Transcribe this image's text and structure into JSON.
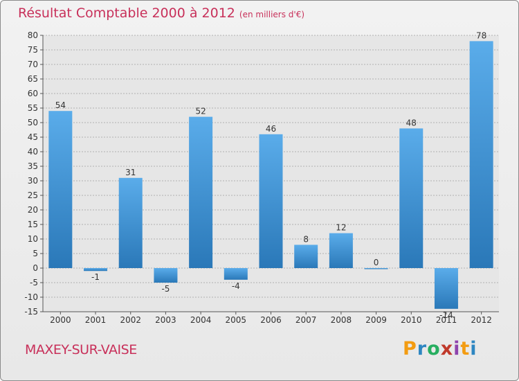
{
  "header": {
    "title": "Résultat Comptable 2000 à 2012",
    "subtitle": "(en milliers d'€)"
  },
  "footer": {
    "commune": "MAXEY-SUR-VAISE",
    "brand": "Proxiti",
    "brand_letters": [
      {
        "char": "P",
        "color": "#f39c12"
      },
      {
        "char": "r",
        "color": "#2e86c1"
      },
      {
        "char": "o",
        "color": "#27ae60"
      },
      {
        "char": "x",
        "color": "#c0392b"
      },
      {
        "char": "i",
        "color": "#8e44ad"
      },
      {
        "char": "t",
        "color": "#f39c12"
      },
      {
        "char": "i",
        "color": "#2e86c1"
      }
    ]
  },
  "chart_data": {
    "type": "bar",
    "title": "Résultat Comptable 2000 à 2012",
    "ylabel": "en milliers d'€",
    "xlabel": "",
    "categories": [
      "2000",
      "2001",
      "2002",
      "2003",
      "2004",
      "2005",
      "2006",
      "2007",
      "2008",
      "2009",
      "2010",
      "2011",
      "2012"
    ],
    "values": [
      54,
      -1,
      31,
      -5,
      52,
      -4,
      46,
      8,
      12,
      0,
      48,
      -14,
      78
    ],
    "value_labels": [
      "54",
      "-1",
      "31",
      "-5",
      "52",
      "-4",
      "46",
      "8",
      "12",
      "0",
      "48",
      "-14",
      "78"
    ],
    "ylim": [
      -15,
      80
    ],
    "yticks": [
      -15,
      -10,
      -5,
      0,
      5,
      10,
      15,
      20,
      25,
      30,
      35,
      40,
      45,
      50,
      55,
      60,
      65,
      70,
      75,
      80
    ],
    "grid": true,
    "bar_color_light": "#5aacea",
    "bar_color_dark": "#2a78b8"
  }
}
